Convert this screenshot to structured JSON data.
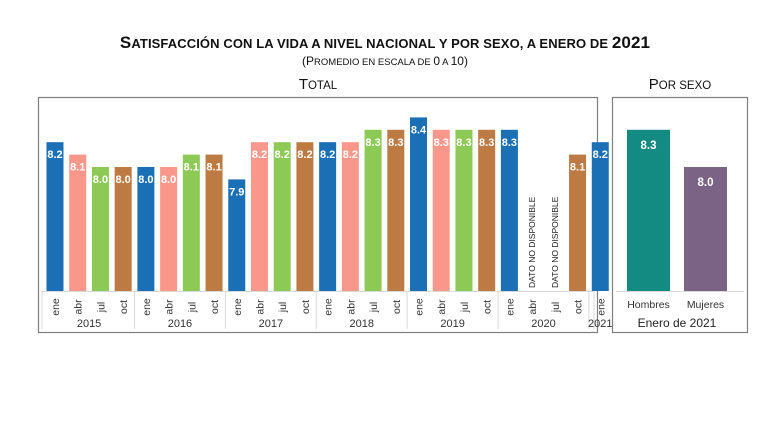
{
  "header": {
    "title_first": "S",
    "title_rest": "ATISFACCIÓN CON LA VIDA A NIVEL NACIONAL Y POR SEXO, A ENERO DE ",
    "title_year": "2021",
    "subtitle_open": "(P",
    "subtitle_rest": "ROMEDIO EN ESCALA DE ",
    "subtitle_zero": "0",
    "subtitle_a": " A ",
    "subtitle_ten": "10)"
  },
  "colors": {
    "ene": "#1a6fb5",
    "abr": "#f9988a",
    "jul": "#8cc955",
    "oct": "#bd7b43",
    "hombres": "#138a82",
    "mujeres": "#7a6385",
    "frame": "#7f7f7f"
  },
  "chart_data": [
    {
      "type": "bar",
      "title": "Total",
      "title_first": "T",
      "title_rest": "OTAL",
      "xlabel": "",
      "ylabel": "",
      "ylim": [
        7.0,
        8.5
      ],
      "grid": false,
      "missing_label": "DATO NO DISPONIBLE",
      "groups": [
        {
          "year": "2015",
          "months": [
            "ene",
            "abr",
            "jul",
            "oct"
          ]
        },
        {
          "year": "2016",
          "months": [
            "ene",
            "abr",
            "jul",
            "oct"
          ]
        },
        {
          "year": "2017",
          "months": [
            "ene",
            "abr",
            "jul",
            "oct"
          ]
        },
        {
          "year": "2018",
          "months": [
            "ene",
            "abr",
            "jul",
            "oct"
          ]
        },
        {
          "year": "2019",
          "months": [
            "ene",
            "abr",
            "jul",
            "oct"
          ]
        },
        {
          "year": "2020",
          "months": [
            "ene",
            "abr",
            "jul",
            "oct"
          ]
        },
        {
          "year": "2021",
          "months": [
            "ene"
          ]
        }
      ],
      "values": [
        8.2,
        8.1,
        8.0,
        8.0,
        8.0,
        8.0,
        8.1,
        8.1,
        7.9,
        8.2,
        8.2,
        8.2,
        8.2,
        8.2,
        8.3,
        8.3,
        8.4,
        8.3,
        8.3,
        8.3,
        8.3,
        null,
        null,
        8.1,
        8.2
      ]
    },
    {
      "type": "bar",
      "title": "Por sexo",
      "title_first": "P",
      "title_rest": "OR SEXO",
      "xlabel": "Enero de 2021",
      "ylim": [
        7.0,
        8.5
      ],
      "categories": [
        "Hombres",
        "Mujeres"
      ],
      "values": [
        8.3,
        8.0
      ]
    }
  ]
}
